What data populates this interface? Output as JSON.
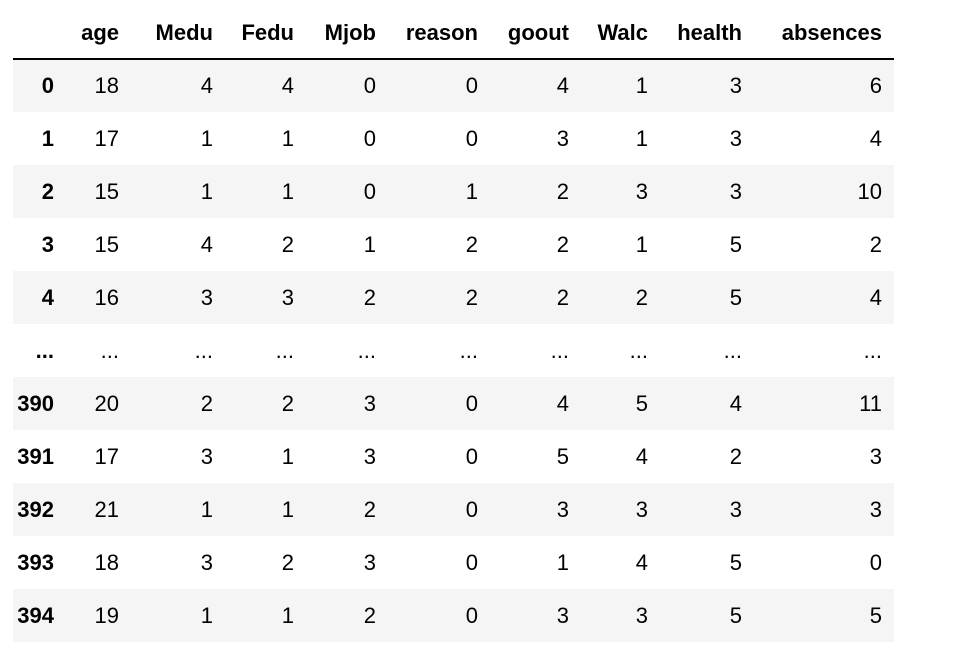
{
  "table": {
    "columns": [
      "",
      "age",
      "Medu",
      "Fedu",
      "Mjob",
      "reason",
      "goout",
      "Walc",
      "health",
      "absences"
    ],
    "rows": [
      {
        "index": "0",
        "cells": [
          "18",
          "4",
          "4",
          "0",
          "0",
          "4",
          "1",
          "3",
          "6"
        ]
      },
      {
        "index": "1",
        "cells": [
          "17",
          "1",
          "1",
          "0",
          "0",
          "3",
          "1",
          "3",
          "4"
        ]
      },
      {
        "index": "2",
        "cells": [
          "15",
          "1",
          "1",
          "0",
          "1",
          "2",
          "3",
          "3",
          "10"
        ]
      },
      {
        "index": "3",
        "cells": [
          "15",
          "4",
          "2",
          "1",
          "2",
          "2",
          "1",
          "5",
          "2"
        ]
      },
      {
        "index": "4",
        "cells": [
          "16",
          "3",
          "3",
          "2",
          "2",
          "2",
          "2",
          "5",
          "4"
        ]
      },
      {
        "index": "...",
        "cells": [
          "...",
          "...",
          "...",
          "...",
          "...",
          "...",
          "...",
          "...",
          "..."
        ]
      },
      {
        "index": "390",
        "cells": [
          "20",
          "2",
          "2",
          "3",
          "0",
          "4",
          "5",
          "4",
          "11"
        ]
      },
      {
        "index": "391",
        "cells": [
          "17",
          "3",
          "1",
          "3",
          "0",
          "5",
          "4",
          "2",
          "3"
        ]
      },
      {
        "index": "392",
        "cells": [
          "21",
          "1",
          "1",
          "2",
          "0",
          "3",
          "3",
          "3",
          "3"
        ]
      },
      {
        "index": "393",
        "cells": [
          "18",
          "3",
          "2",
          "3",
          "0",
          "1",
          "4",
          "5",
          "0"
        ]
      },
      {
        "index": "394",
        "cells": [
          "19",
          "1",
          "1",
          "2",
          "0",
          "3",
          "3",
          "5",
          "5"
        ]
      }
    ]
  },
  "colors": {
    "stripe": "#f5f5f5",
    "background": "#ffffff",
    "header_rule": "#000000"
  }
}
